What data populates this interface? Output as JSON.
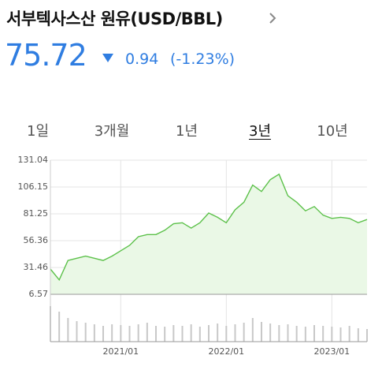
{
  "header": {
    "title": "서부텍사스산 원유(USD/BBL)"
  },
  "quote": {
    "price": "75.72",
    "change": "0.94",
    "change_percent": "(-1.23%)"
  },
  "tabs": {
    "items": [
      "1일",
      "3개월",
      "1년",
      "3년",
      "10년"
    ],
    "selected": 3
  },
  "chart_data": {
    "type": "area",
    "categories": [
      null,
      null,
      null,
      null,
      null,
      null,
      null,
      null,
      "2021/01",
      null,
      null,
      null,
      null,
      null,
      null,
      null,
      null,
      null,
      null,
      null,
      "2022/01",
      null,
      null,
      null,
      null,
      null,
      null,
      null,
      null,
      null,
      null,
      null,
      "2023/01",
      null,
      null,
      null,
      null
    ],
    "series": [
      {
        "color": "#5cc14a",
        "values": [
          30,
          20,
          38,
          40,
          42,
          40,
          38,
          42,
          47,
          52,
          60,
          62,
          62,
          66,
          72,
          73,
          68,
          73,
          82,
          78,
          73,
          85,
          92,
          108,
          102,
          113,
          118,
          98,
          92,
          84,
          88,
          80,
          77,
          78,
          77,
          73,
          76
        ]
      }
    ],
    "volume": {
      "color": "#c8c8c8",
      "values": [
        45,
        38,
        30,
        26,
        24,
        22,
        20,
        22,
        21,
        20,
        22,
        24,
        20,
        19,
        21,
        20,
        22,
        19,
        21,
        23,
        20,
        22,
        24,
        30,
        25,
        23,
        21,
        22,
        20,
        19,
        21,
        20,
        19,
        18,
        20,
        17,
        16
      ]
    },
    "ylim": [
      6.57,
      131.04
    ],
    "yticks": [
      6.57,
      31.46,
      56.36,
      81.25,
      106.15,
      131.04
    ],
    "grid": true
  }
}
